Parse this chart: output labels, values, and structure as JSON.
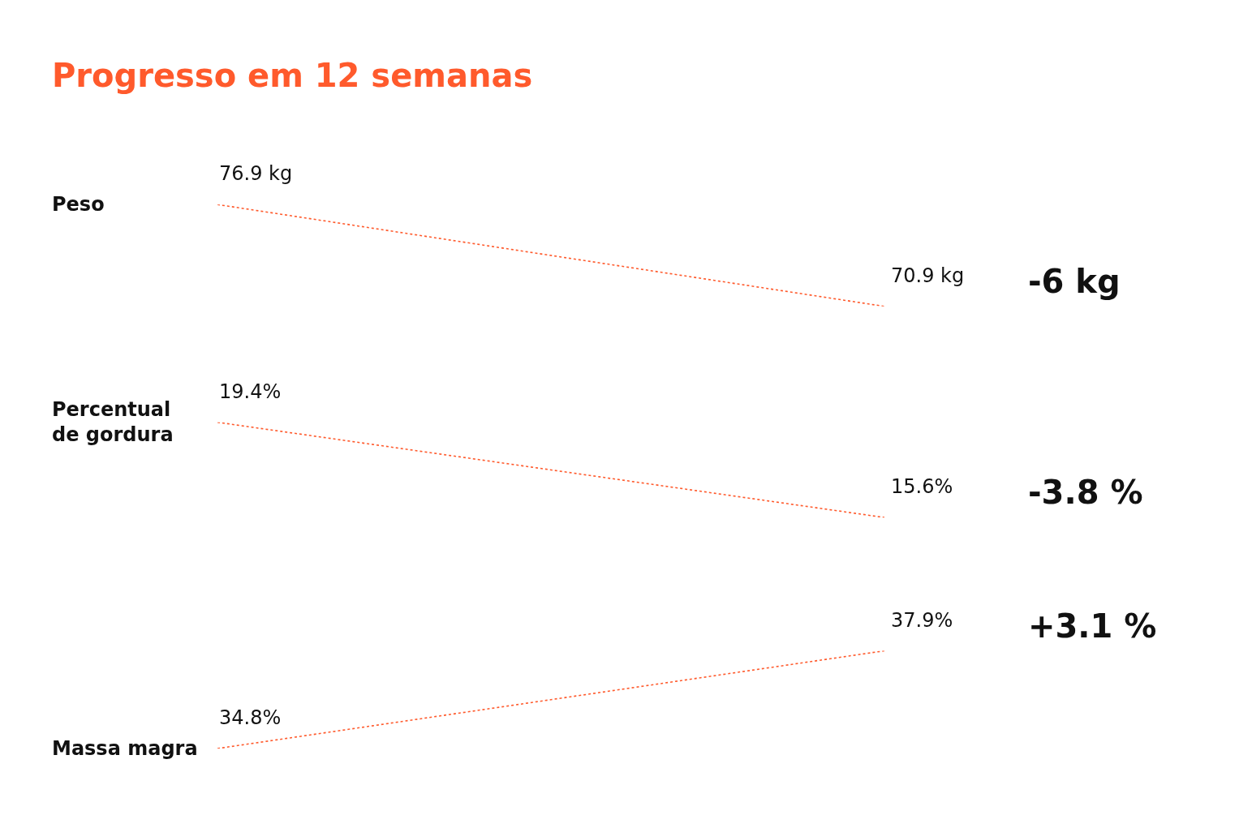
{
  "chart_data": [
    {
      "type": "line",
      "title": "Progresso em 12 semanas",
      "ylabel": "Peso",
      "categories": [
        null,
        null
      ],
      "values": [
        76.9,
        70.9
      ],
      "value_labels": [
        "76.9 kg",
        "70.9 kg"
      ],
      "annotations": [
        "-6 kg"
      ],
      "color": "#ff5a2c",
      "line_style": "dotted",
      "marker": "none",
      "tick_labels": false
    },
    {
      "type": "line",
      "ylabel": "Percentual\nde gordura",
      "categories": [
        null,
        null
      ],
      "values": [
        19.4,
        15.6
      ],
      "value_labels": [
        "19.4%",
        "15.6%"
      ],
      "annotations": [
        "-3.8 %"
      ],
      "color": "#ff5a2c",
      "line_style": "dotted",
      "marker": "none",
      "tick_labels": false
    },
    {
      "type": "line",
      "ylabel": "Massa magra",
      "categories": [
        null,
        null
      ],
      "values": [
        34.8,
        37.9
      ],
      "value_labels": [
        "34.8%",
        "37.9%"
      ],
      "annotations": [
        "+3.1 %"
      ],
      "color": "#ff5a2c",
      "line_style": "dotted",
      "marker": "none",
      "tick_labels": false
    }
  ]
}
